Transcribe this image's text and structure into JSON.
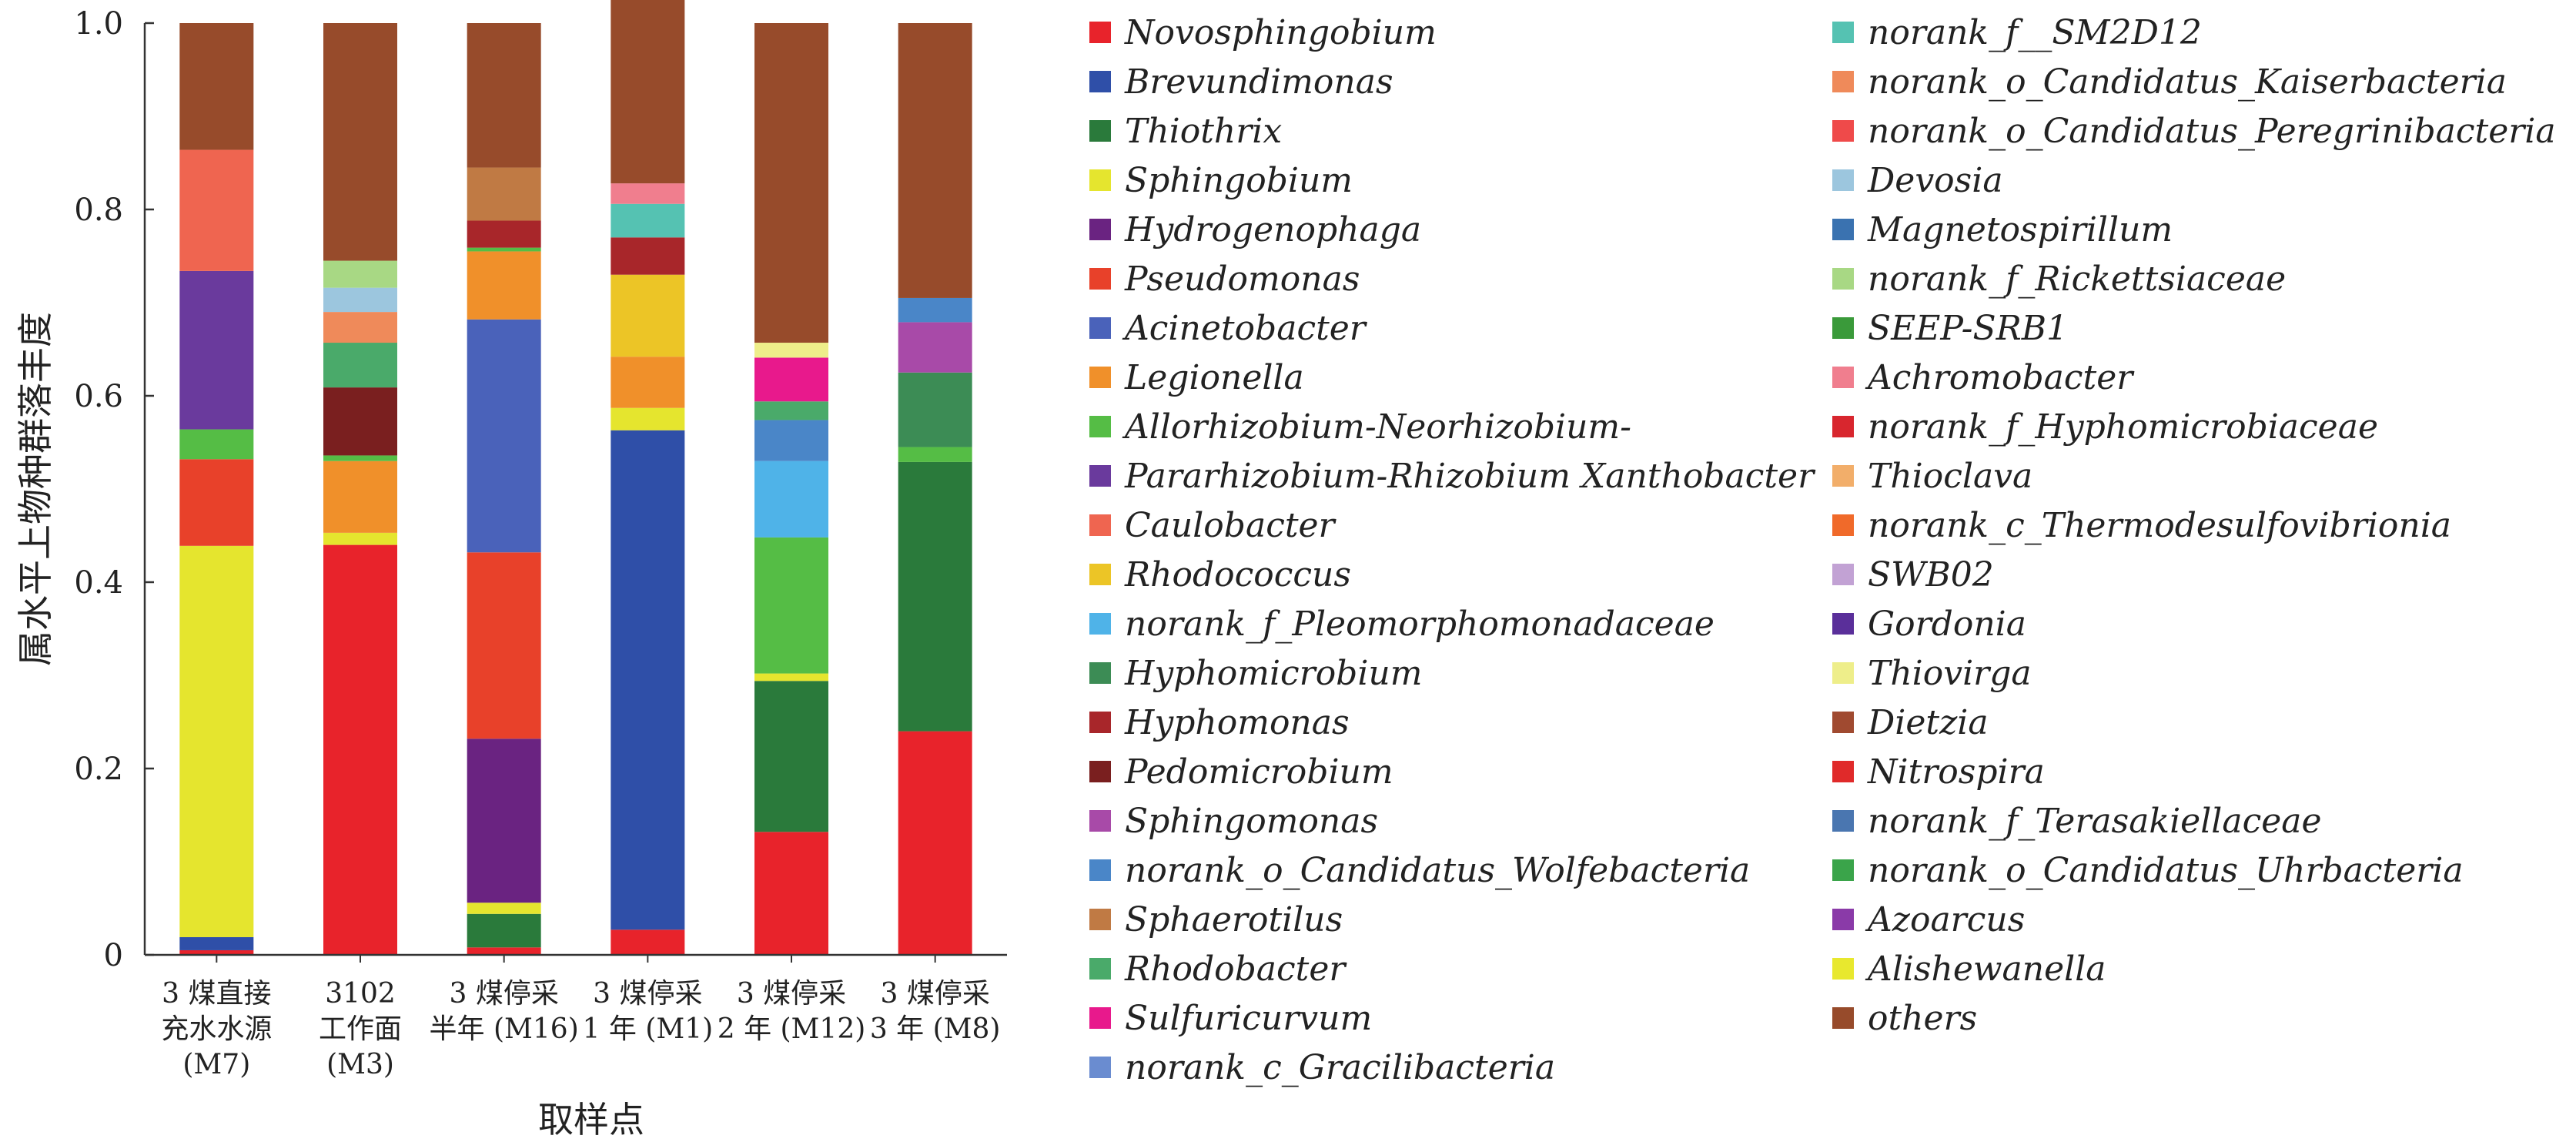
{
  "chart_data": {
    "type": "bar",
    "stacked": true,
    "xlabel": "取样点",
    "ylabel": "属水平上物种群落丰度",
    "ylim": [
      0,
      1.0
    ],
    "yticks": [
      "0",
      "0.2",
      "0.4",
      "0.6",
      "0.8",
      "1.0"
    ],
    "grid": false,
    "legend_position": "right",
    "categories": [
      [
        "3 煤直接",
        "充水水源",
        "(M7)"
      ],
      [
        "3102",
        "工作面",
        "(M3)"
      ],
      [
        "3 煤停采",
        "半年 (M16)"
      ],
      [
        "3 煤停采",
        "1 年 (M1)"
      ],
      [
        "3 煤停采",
        "2 年 (M12)"
      ],
      [
        "3 煤停采",
        "3 年 (M8)"
      ]
    ],
    "series": [
      {
        "name": "Novosphingobium",
        "color": "#e8232b",
        "values": [
          0.005,
          0.44,
          0.008,
          0.027,
          0.132,
          0.24
        ]
      },
      {
        "name": "Brevundimonas",
        "color": "#2f4fa8",
        "values": [
          0.014,
          0.0,
          0.0,
          0.536,
          0.0,
          0.0
        ]
      },
      {
        "name": "Thiothrix",
        "color": "#2a7a3b",
        "values": [
          0.0,
          0.0,
          0.036,
          0.0,
          0.162,
          0.289
        ]
      },
      {
        "name": "Sphingobium",
        "color": "#e5e52e",
        "values": [
          0.42,
          0.013,
          0.012,
          0.024,
          0.008,
          0.0
        ]
      },
      {
        "name": "Hydrogenophaga",
        "color": "#6a2381",
        "values": [
          0.0,
          0.0,
          0.176,
          0.0,
          0.0,
          0.0
        ]
      },
      {
        "name": "Pseudomonas",
        "color": "#e8412a",
        "values": [
          0.093,
          0.0,
          0.2,
          0.0,
          0.0,
          0.0
        ]
      },
      {
        "name": "Acinetobacter",
        "color": "#4a62ba",
        "values": [
          0.0,
          0.0,
          0.25,
          0.0,
          0.0,
          0.0
        ]
      },
      {
        "name": "Legionella",
        "color": "#f0902a",
        "values": [
          0.0,
          0.077,
          0.073,
          0.055,
          0.0,
          0.0
        ]
      },
      {
        "name": "Allorhizobium-Neorhizobium-",
        "color": "#55bd45",
        "values": [
          0.032,
          0.006,
          0.004,
          0.0,
          0.146,
          0.016
        ]
      },
      {
        "name": "Pararhizobium-Rhizobium Xanthobacter",
        "color": "#6a3a9d",
        "values": [
          0.17,
          0.0,
          0.0,
          0.0,
          0.0,
          0.0
        ]
      },
      {
        "name": "Caulobacter",
        "color": "#ef6550",
        "values": [
          0.13,
          0.0,
          0.0,
          0.0,
          0.0,
          0.0
        ]
      },
      {
        "name": "Rhodococcus",
        "color": "#ecc526",
        "values": [
          0.0,
          0.0,
          0.0,
          0.088,
          0.0,
          0.0
        ]
      },
      {
        "name": "norank_f_Pleomorphomonadaceae",
        "color": "#4fb3e8",
        "values": [
          0.0,
          0.0,
          0.0,
          0.0,
          0.082,
          0.0
        ]
      },
      {
        "name": "Hyphomicrobium",
        "color": "#3c8c55",
        "values": [
          0.0,
          0.0,
          0.0,
          0.0,
          0.0,
          0.08
        ]
      },
      {
        "name": "Hyphomonas",
        "color": "#a8262a",
        "values": [
          0.0,
          0.0,
          0.029,
          0.04,
          0.0,
          0.0
        ]
      },
      {
        "name": "Pedomicrobium",
        "color": "#7a1f1f",
        "values": [
          0.0,
          0.073,
          0.0,
          0.0,
          0.0,
          0.0
        ]
      },
      {
        "name": "Sphingomonas",
        "color": "#a84aa8",
        "values": [
          0.0,
          0.0,
          0.0,
          0.0,
          0.0,
          0.054
        ]
      },
      {
        "name": "norank_o_Candidatus_Wolfebacteria",
        "color": "#4a86c8",
        "values": [
          0.0,
          0.0,
          0.0,
          0.0,
          0.044,
          0.026
        ]
      },
      {
        "name": "Sphaerotilus",
        "color": "#c07a44",
        "values": [
          0.0,
          0.0,
          0.057,
          0.0,
          0.0,
          0.0
        ]
      },
      {
        "name": "Rhodobacter",
        "color": "#4aaa6a",
        "values": [
          0.0,
          0.048,
          0.0,
          0.0,
          0.02,
          0.0
        ]
      },
      {
        "name": "Sulfuricurvum",
        "color": "#e8198c",
        "values": [
          0.0,
          0.0,
          0.0,
          0.0,
          0.047,
          0.0
        ]
      },
      {
        "name": "norank_c_Gracilibacteria",
        "color": "#6a8cd0",
        "values": [
          0.0,
          0.0,
          0.0,
          0.0,
          0.0,
          0.0
        ]
      },
      {
        "name": "norank_f__SM2D12",
        "color": "#55c2b2",
        "values": [
          0.0,
          0.0,
          0.0,
          0.036,
          0.0,
          0.0
        ]
      },
      {
        "name": "norank_o_Candidatus_Kaiserbacteria",
        "color": "#ef8a5a",
        "values": [
          0.0,
          0.033,
          0.0,
          0.0,
          0.0,
          0.0
        ]
      },
      {
        "name": "norank_o_Candidatus_Peregrinibacteria",
        "color": "#ef4a4a",
        "values": [
          0.0,
          0.0,
          0.0,
          0.0,
          0.0,
          0.0
        ]
      },
      {
        "name": "Devosia",
        "color": "#9cc6de",
        "values": [
          0.0,
          0.026,
          0.0,
          0.0,
          0.0,
          0.0
        ]
      },
      {
        "name": "Magnetospirillum",
        "color": "#3a72b0",
        "values": [
          0.0,
          0.0,
          0.0,
          0.0,
          0.0,
          0.0
        ]
      },
      {
        "name": "norank_f_Rickettsiaceae",
        "color": "#a8d884",
        "values": [
          0.0,
          0.029,
          0.0,
          0.0,
          0.0,
          0.0
        ]
      },
      {
        "name": "SEEP-SRB1",
        "color": "#3a9a3a",
        "values": [
          0.0,
          0.0,
          0.0,
          0.0,
          0.0,
          0.0
        ]
      },
      {
        "name": "Achromobacter",
        "color": "#f07e8e",
        "values": [
          0.0,
          0.0,
          0.0,
          0.022,
          0.0,
          0.0
        ]
      },
      {
        "name": "norank_f_Hyphomicrobiaceae",
        "color": "#d8262e",
        "values": [
          0.0,
          0.0,
          0.0,
          0.0,
          0.0,
          0.0
        ]
      },
      {
        "name": "Thioclava",
        "color": "#f2ae6a",
        "values": [
          0.0,
          0.0,
          0.0,
          0.0,
          0.0,
          0.0
        ]
      },
      {
        "name": "norank_c_Thermodesulfovibrionia",
        "color": "#f06a2a",
        "values": [
          0.0,
          0.0,
          0.0,
          0.0,
          0.0,
          0.0
        ]
      },
      {
        "name": "SWB02",
        "color": "#c2a2d4",
        "values": [
          0.0,
          0.0,
          0.0,
          0.0,
          0.0,
          0.0
        ]
      },
      {
        "name": "Gordonia",
        "color": "#5a2f9a",
        "values": [
          0.0,
          0.0,
          0.0,
          0.0,
          0.0,
          0.0
        ]
      },
      {
        "name": "Thiovirga",
        "color": "#eeee8a",
        "values": [
          0.0,
          0.0,
          0.0,
          0.0,
          0.016,
          0.0
        ]
      },
      {
        "name": "Dietzia",
        "color": "#a04a30",
        "values": [
          0.0,
          0.0,
          0.0,
          0.0,
          0.0,
          0.0
        ]
      },
      {
        "name": "Nitrospira",
        "color": "#e02a2a",
        "values": [
          0.0,
          0.0,
          0.0,
          0.0,
          0.0,
          0.0
        ]
      },
      {
        "name": "norank_f_Terasakiellaceae",
        "color": "#4a76b0",
        "values": [
          0.0,
          0.0,
          0.0,
          0.0,
          0.0,
          0.0
        ]
      },
      {
        "name": "norank_o_Candidatus_Uhrbacteria",
        "color": "#3aa44a",
        "values": [
          0.0,
          0.0,
          0.0,
          0.0,
          0.0,
          0.0
        ]
      },
      {
        "name": "Azoarcus",
        "color": "#8a3aa8",
        "values": [
          0.0,
          0.0,
          0.0,
          0.0,
          0.0,
          0.0
        ]
      },
      {
        "name": "Alishewanella",
        "color": "#e8e82e",
        "values": [
          0.0,
          0.0,
          0.0,
          0.0,
          0.0,
          0.0
        ]
      },
      {
        "name": "others",
        "color": "#974b2b",
        "values": [
          0.136,
          0.255,
          0.155,
          0.209,
          0.343,
          0.295
        ]
      }
    ]
  }
}
